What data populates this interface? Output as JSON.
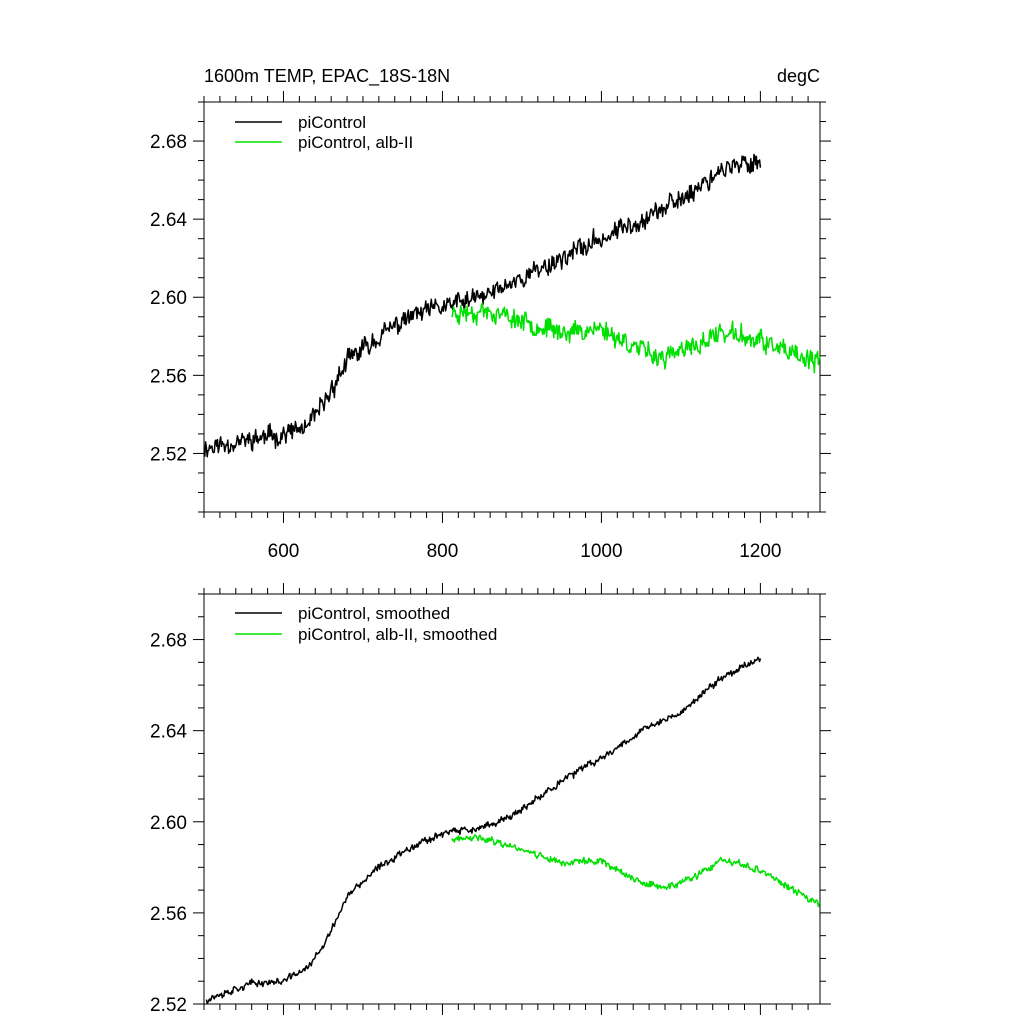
{
  "chart_data": [
    {
      "type": "line",
      "title": "1600m TEMP, EPAC_18S-18N",
      "units": "degC",
      "xlim": [
        500,
        1275
      ],
      "ylim": [
        2.49,
        2.7
      ],
      "xticks": [
        600,
        800,
        1000,
        1200
      ],
      "xtick_labels": [
        "600",
        "800",
        "1000",
        "1200"
      ],
      "yticks": [
        2.52,
        2.56,
        2.6,
        2.64,
        2.68
      ],
      "ytick_labels": [
        "2.52",
        "2.56",
        "2.60",
        "2.64",
        "2.68"
      ],
      "legend_position": "top-left",
      "series": [
        {
          "name": "piControl",
          "color": "#000000",
          "noise": 0.006,
          "seed": 11,
          "anchors": [
            [
              500,
              2.523
            ],
            [
              600,
              2.53
            ],
            [
              630,
              2.533
            ],
            [
              650,
              2.545
            ],
            [
              680,
              2.567
            ],
            [
              720,
              2.58
            ],
            [
              760,
              2.59
            ],
            [
              800,
              2.595
            ],
            [
              850,
              2.6
            ],
            [
              900,
              2.61
            ],
            [
              950,
              2.62
            ],
            [
              1000,
              2.63
            ],
            [
              1050,
              2.64
            ],
            [
              1100,
              2.65
            ],
            [
              1150,
              2.665
            ],
            [
              1200,
              2.67
            ]
          ]
        },
        {
          "name": "piControl, alb-II",
          "color": "#00e000",
          "noise": 0.006,
          "seed": 23,
          "anchors": [
            [
              812,
              2.592
            ],
            [
              850,
              2.593
            ],
            [
              900,
              2.588
            ],
            [
              950,
              2.582
            ],
            [
              1000,
              2.584
            ],
            [
              1050,
              2.573
            ],
            [
              1080,
              2.569
            ],
            [
              1120,
              2.575
            ],
            [
              1150,
              2.582
            ],
            [
              1200,
              2.578
            ],
            [
              1240,
              2.57
            ],
            [
              1275,
              2.566
            ]
          ]
        }
      ]
    },
    {
      "type": "line",
      "title": "",
      "units": "",
      "xlim": [
        500,
        1275
      ],
      "ylim": [
        2.52,
        2.7
      ],
      "xticks": [
        600,
        800,
        1000,
        1200
      ],
      "xtick_labels": [],
      "yticks": [
        2.52,
        2.56,
        2.6,
        2.64,
        2.68
      ],
      "ytick_labels": [
        "2.52",
        "2.56",
        "2.60",
        "2.64",
        "2.68"
      ],
      "legend_position": "top-left",
      "series": [
        {
          "name": "piControl, smoothed",
          "color": "#000000",
          "noise": 0.0018,
          "seed": 37,
          "anchors": [
            [
              503,
              2.522
            ],
            [
              560,
              2.529
            ],
            [
              600,
              2.53
            ],
            [
              630,
              2.536
            ],
            [
              650,
              2.545
            ],
            [
              680,
              2.567
            ],
            [
              720,
              2.58
            ],
            [
              760,
              2.589
            ],
            [
              800,
              2.595
            ],
            [
              850,
              2.597
            ],
            [
              900,
              2.605
            ],
            [
              950,
              2.618
            ],
            [
              1000,
              2.628
            ],
            [
              1050,
              2.64
            ],
            [
              1100,
              2.648
            ],
            [
              1150,
              2.663
            ],
            [
              1200,
              2.672
            ]
          ]
        },
        {
          "name": "piControl, alb-II, smoothed",
          "color": "#00e000",
          "noise": 0.0018,
          "seed": 41,
          "anchors": [
            [
              812,
              2.592
            ],
            [
              850,
              2.593
            ],
            [
              900,
              2.588
            ],
            [
              950,
              2.582
            ],
            [
              1000,
              2.583
            ],
            [
              1050,
              2.573
            ],
            [
              1080,
              2.571
            ],
            [
              1120,
              2.576
            ],
            [
              1150,
              2.583
            ],
            [
              1200,
              2.579
            ],
            [
              1240,
              2.57
            ],
            [
              1275,
              2.564
            ]
          ]
        }
      ]
    }
  ]
}
